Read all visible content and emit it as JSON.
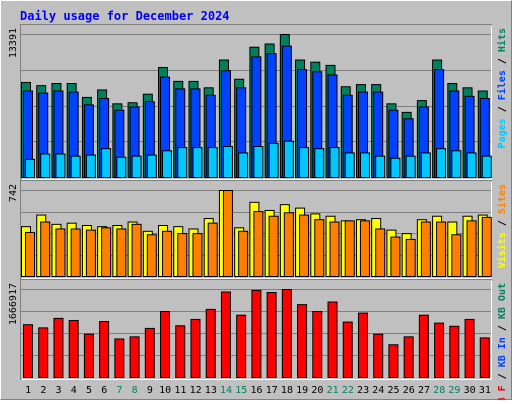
{
  "chart_data": [
    {
      "type": "bar",
      "title": "Daily usage for December 2024",
      "categories": [
        "1",
        "2",
        "3",
        "4",
        "5",
        "6",
        "7",
        "8",
        "9",
        "10",
        "11",
        "12",
        "13",
        "14",
        "15",
        "16",
        "17",
        "18",
        "19",
        "20",
        "21",
        "22",
        "23",
        "24",
        "25",
        "26",
        "27",
        "28",
        "29",
        "30",
        "31"
      ],
      "ylim": [
        0,
        13391
      ],
      "y_tick_label": "13391",
      "legend": [
        "Pages",
        "/",
        "Files",
        "/",
        "Hits"
      ],
      "series": [
        {
          "name": "Hits",
          "color": "#00805c",
          "values": [
            8900,
            8600,
            8800,
            8800,
            7500,
            8200,
            6900,
            7000,
            7800,
            10300,
            9000,
            9000,
            8400,
            11000,
            9200,
            12200,
            12500,
            13391,
            11000,
            10800,
            10500,
            8500,
            8700,
            8700,
            6900,
            6100,
            7200,
            11000,
            8800,
            8400,
            8100
          ]
        },
        {
          "name": "Files",
          "color": "#0042ff",
          "values": [
            8100,
            7900,
            8100,
            8000,
            6800,
            7400,
            6300,
            6600,
            7100,
            9400,
            8300,
            8300,
            7700,
            10000,
            8400,
            11300,
            11600,
            12300,
            10100,
            9900,
            9600,
            7700,
            8000,
            8000,
            6300,
            5500,
            6600,
            10100,
            8100,
            7600,
            7400
          ]
        },
        {
          "name": "Pages",
          "color": "#00c8ff",
          "values": [
            1700,
            2200,
            2200,
            2000,
            2100,
            2700,
            1900,
            2000,
            2100,
            2500,
            2800,
            2800,
            2800,
            2900,
            2300,
            2900,
            3200,
            3400,
            2800,
            2700,
            2800,
            2300,
            2300,
            2000,
            1800,
            2000,
            2300,
            2700,
            2500,
            2300,
            2000
          ]
        }
      ]
    },
    {
      "type": "bar",
      "categories": [
        "1",
        "2",
        "3",
        "4",
        "5",
        "6",
        "7",
        "8",
        "9",
        "10",
        "11",
        "12",
        "13",
        "14",
        "15",
        "16",
        "17",
        "18",
        "19",
        "20",
        "21",
        "22",
        "23",
        "24",
        "25",
        "26",
        "27",
        "28",
        "29",
        "30",
        "31"
      ],
      "ylim": [
        0,
        742
      ],
      "y_tick_label": "742",
      "legend": [
        "Visits",
        "/",
        "Sites"
      ],
      "series": [
        {
          "name": "Visits",
          "color": "#ffff00",
          "values": [
            430,
            530,
            450,
            460,
            440,
            430,
            440,
            470,
            390,
            440,
            430,
            410,
            500,
            742,
            420,
            640,
            570,
            620,
            590,
            540,
            520,
            480,
            490,
            500,
            400,
            370,
            490,
            520,
            470,
            520,
            530
          ]
        },
        {
          "name": "Sites",
          "color": "#ff8000",
          "values": [
            380,
            470,
            410,
            410,
            400,
            420,
            410,
            450,
            360,
            390,
            370,
            370,
            460,
            742,
            390,
            560,
            520,
            550,
            530,
            490,
            470,
            480,
            480,
            410,
            340,
            320,
            470,
            470,
            360,
            480,
            510
          ]
        }
      ]
    },
    {
      "type": "bar",
      "categories": [
        "1",
        "2",
        "3",
        "4",
        "5",
        "6",
        "7",
        "8",
        "9",
        "10",
        "11",
        "12",
        "13",
        "14",
        "15",
        "16",
        "17",
        "18",
        "19",
        "20",
        "21",
        "22",
        "23",
        "24",
        "25",
        "26",
        "27",
        "28",
        "29",
        "30",
        "31"
      ],
      "ylim": [
        0,
        1666917
      ],
      "y_tick_label": "1666917",
      "legend": [
        "KB F",
        "/",
        "KB In",
        "/",
        "KB Out"
      ],
      "series": [
        {
          "name": "KB F",
          "color": "#ff0000",
          "values": [
            1000000,
            940000,
            1120000,
            1080000,
            820000,
            1060000,
            730000,
            770000,
            930000,
            1250000,
            980000,
            1100000,
            1290000,
            1620000,
            1180000,
            1650000,
            1610000,
            1666917,
            1380000,
            1250000,
            1430000,
            1050000,
            1220000,
            820000,
            620000,
            770000,
            1180000,
            1030000,
            970000,
            1100000,
            750000
          ]
        }
      ]
    }
  ],
  "x_axis_labels": {
    "weekend_days": [
      "7",
      "8",
      "14",
      "15",
      "21",
      "22",
      "28",
      "29"
    ],
    "weekday_color": "#000000",
    "weekend_color": "#00805c"
  },
  "colors": {
    "background": "#c0c0c0",
    "title": "#0000ff",
    "hits": "#00805c",
    "files": "#0042ff",
    "pages": "#00c8ff",
    "visits": "#ffff00",
    "sites": "#ff8000",
    "kbin": "#0042ff",
    "kbout": "#00805c",
    "kbf": "#ff0000"
  }
}
